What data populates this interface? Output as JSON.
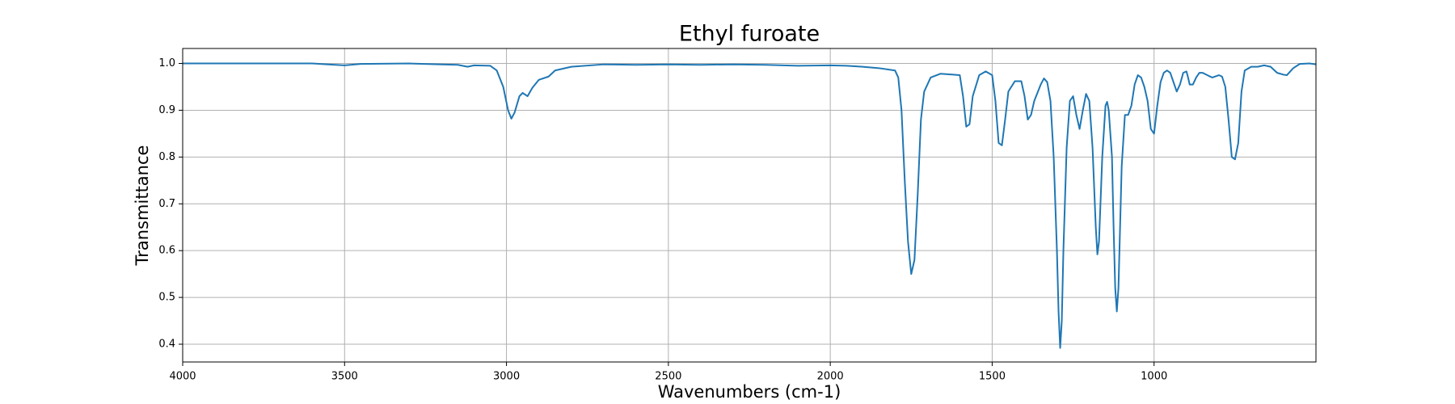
{
  "chart_data": {
    "type": "line",
    "title": "Ethyl furoate",
    "x_label": "Wavenumbers (cm-1)",
    "y_label": "Transmittance",
    "x": [
      4000,
      3600,
      3550,
      3500,
      3450,
      3300,
      3200,
      3150,
      3120,
      3100,
      3050,
      3030,
      3010,
      2995,
      2985,
      2975,
      2960,
      2950,
      2935,
      2920,
      2900,
      2870,
      2850,
      2800,
      2700,
      2600,
      2500,
      2400,
      2300,
      2200,
      2100,
      2000,
      1950,
      1900,
      1850,
      1800,
      1790,
      1780,
      1770,
      1760,
      1750,
      1740,
      1730,
      1720,
      1710,
      1690,
      1660,
      1620,
      1600,
      1590,
      1580,
      1570,
      1560,
      1540,
      1520,
      1500,
      1490,
      1480,
      1470,
      1460,
      1450,
      1430,
      1410,
      1400,
      1390,
      1380,
      1370,
      1350,
      1340,
      1330,
      1320,
      1310,
      1300,
      1295,
      1290,
      1285,
      1280,
      1270,
      1260,
      1250,
      1240,
      1230,
      1220,
      1210,
      1200,
      1190,
      1180,
      1175,
      1170,
      1160,
      1150,
      1145,
      1140,
      1130,
      1125,
      1120,
      1115,
      1110,
      1100,
      1090,
      1080,
      1070,
      1060,
      1050,
      1040,
      1030,
      1020,
      1010,
      1000,
      990,
      980,
      970,
      960,
      950,
      940,
      930,
      920,
      910,
      900,
      895,
      890,
      880,
      870,
      860,
      850,
      830,
      820,
      800,
      790,
      780,
      770,
      760,
      750,
      740,
      730,
      720,
      700,
      680,
      660,
      640,
      620,
      600,
      590,
      570,
      550,
      520,
      500
    ],
    "series": [
      {
        "name": "Transmittance",
        "color": "#1f77b4",
        "values": [
          1.0,
          1.0,
          0.998,
          0.996,
          0.999,
          1.0,
          0.998,
          0.997,
          0.993,
          0.996,
          0.995,
          0.985,
          0.95,
          0.9,
          0.882,
          0.895,
          0.93,
          0.937,
          0.93,
          0.948,
          0.965,
          0.972,
          0.985,
          0.993,
          0.998,
          0.997,
          0.998,
          0.997,
          0.998,
          0.997,
          0.995,
          0.996,
          0.995,
          0.993,
          0.99,
          0.985,
          0.97,
          0.9,
          0.75,
          0.62,
          0.55,
          0.58,
          0.72,
          0.88,
          0.94,
          0.97,
          0.978,
          0.976,
          0.975,
          0.93,
          0.865,
          0.87,
          0.93,
          0.975,
          0.983,
          0.975,
          0.92,
          0.83,
          0.825,
          0.88,
          0.94,
          0.962,
          0.962,
          0.93,
          0.88,
          0.89,
          0.92,
          0.955,
          0.968,
          0.96,
          0.92,
          0.8,
          0.6,
          0.47,
          0.392,
          0.45,
          0.6,
          0.82,
          0.92,
          0.93,
          0.89,
          0.86,
          0.9,
          0.935,
          0.92,
          0.82,
          0.65,
          0.592,
          0.62,
          0.8,
          0.91,
          0.918,
          0.9,
          0.8,
          0.65,
          0.52,
          0.47,
          0.52,
          0.78,
          0.89,
          0.89,
          0.91,
          0.955,
          0.975,
          0.97,
          0.95,
          0.92,
          0.86,
          0.85,
          0.91,
          0.96,
          0.98,
          0.985,
          0.98,
          0.96,
          0.94,
          0.955,
          0.98,
          0.983,
          0.97,
          0.955,
          0.955,
          0.97,
          0.98,
          0.98,
          0.973,
          0.97,
          0.975,
          0.972,
          0.95,
          0.88,
          0.8,
          0.795,
          0.83,
          0.94,
          0.985,
          0.993,
          0.993,
          0.996,
          0.993,
          0.98,
          0.976,
          0.975,
          0.99,
          0.999,
          1.0,
          0.998
        ]
      }
    ],
    "xlim": [
      4000,
      500
    ],
    "ylim": [
      0.362,
      1.032
    ],
    "xticks": [
      4000,
      3500,
      3000,
      2500,
      2000,
      1500,
      1000
    ],
    "yticks": [
      {
        "value": 1.0,
        "label": "1.0"
      },
      0.9,
      0.8,
      0.7,
      0.6,
      0.5,
      0.4
    ],
    "grid": true
  }
}
